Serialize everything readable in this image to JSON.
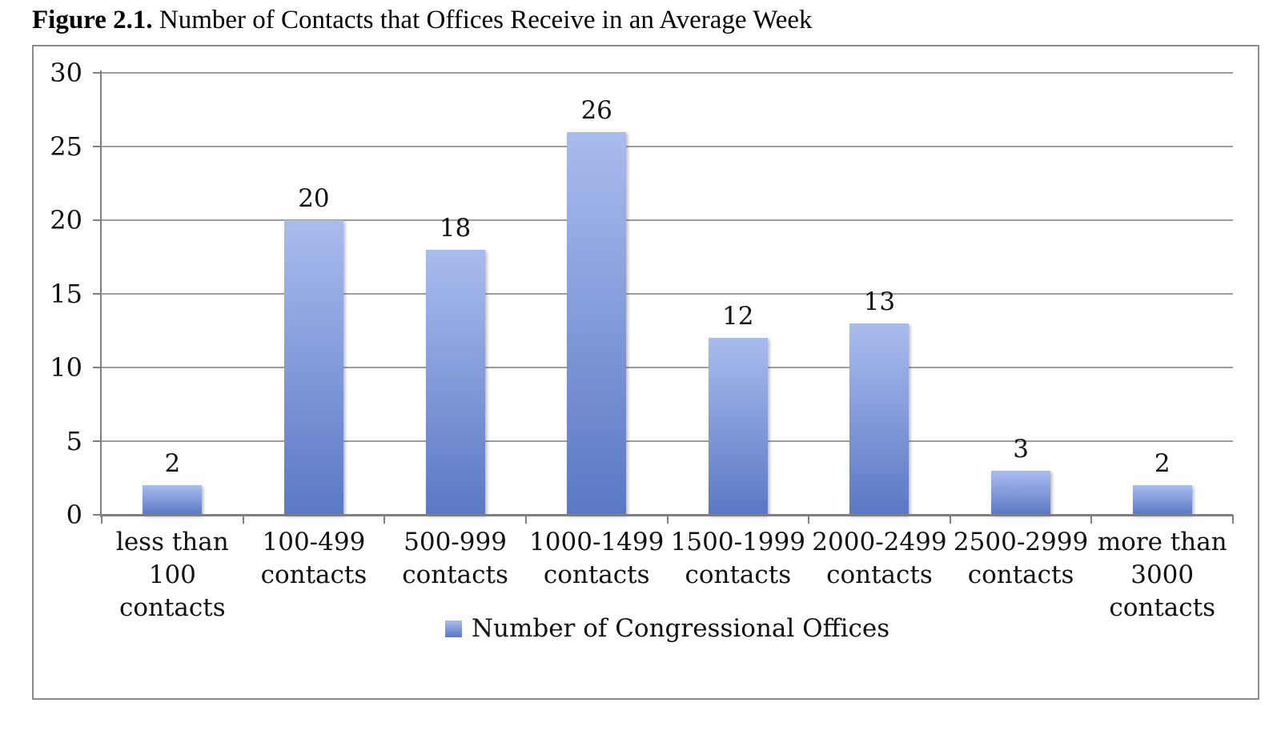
{
  "figure_title": {
    "prefix": "Figure 2.1.",
    "rest": " Number of Contacts that Offices Receive in an Average Week"
  },
  "chart_data": {
    "type": "bar",
    "title": "Figure 2.1. Number of Contacts that Offices Receive in an Average Week",
    "categories": [
      "less than 100 contacts",
      "100-499 contacts",
      "500-999 contacts",
      "1000-1499 contacts",
      "1500-1999 contacts",
      "2000-2499 contacts",
      "2500-2999 contacts",
      "more than 3000 contacts"
    ],
    "category_lines": [
      [
        "less than",
        "100",
        "contacts"
      ],
      [
        "100-499",
        "contacts"
      ],
      [
        "500-999",
        "contacts"
      ],
      [
        "1000-1499",
        "contacts"
      ],
      [
        "1500-1999",
        "contacts"
      ],
      [
        "2000-2499",
        "contacts"
      ],
      [
        "2500-2999",
        "contacts"
      ],
      [
        "more than",
        "3000",
        "contacts"
      ]
    ],
    "values": [
      2,
      20,
      18,
      26,
      12,
      13,
      3,
      2
    ],
    "data_labels": [
      "2",
      "20",
      "18",
      "26",
      "12",
      "13",
      "3",
      "2"
    ],
    "series_name": "Number of Congressional Offices",
    "xlabel": "",
    "ylabel": "",
    "ylim": [
      0,
      30
    ],
    "yticks": [
      0,
      5,
      10,
      15,
      20,
      25,
      30
    ],
    "grid": true,
    "legend_position": "bottom",
    "colors": {
      "bar_gradient_top": "#a9bcee",
      "bar_gradient_bottom": "#5a78c4",
      "gridline": "#9d9d9d",
      "axis": "#7f7f7f",
      "frame_border": "#8c8c8c",
      "text": "#000000"
    }
  }
}
